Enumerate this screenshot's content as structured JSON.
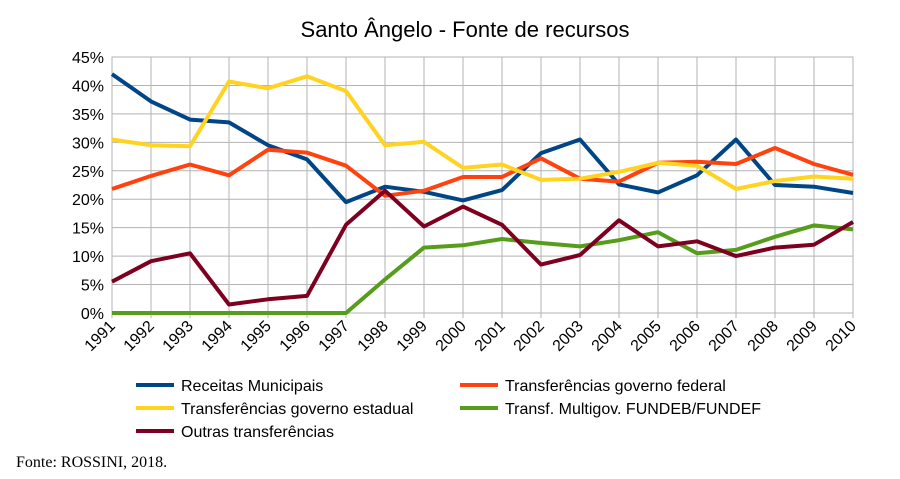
{
  "chart_data": {
    "type": "line",
    "title": "Santo Ângelo - Fonte de recursos",
    "xlabel": "",
    "ylabel": "",
    "ylim": [
      0,
      0.45
    ],
    "y_ticks": [
      "0%",
      "5%",
      "10%",
      "15%",
      "20%",
      "25%",
      "30%",
      "35%",
      "40%",
      "45%"
    ],
    "grid": true,
    "legend_position": "bottom",
    "categories": [
      "1991",
      "1992",
      "1993",
      "1994",
      "1995",
      "1996",
      "1997",
      "1998",
      "1999",
      "2000",
      "2001",
      "2002",
      "2003",
      "2004",
      "2005",
      "2006",
      "2007",
      "2008",
      "2009",
      "2010"
    ],
    "series": [
      {
        "name": "Receitas Municipais",
        "color": "#004586",
        "values": [
          0.42,
          0.372,
          0.34,
          0.335,
          0.295,
          0.27,
          0.195,
          0.222,
          0.213,
          0.198,
          0.216,
          0.281,
          0.305,
          0.226,
          0.212,
          0.242,
          0.305,
          0.225,
          0.222,
          0.211
        ]
      },
      {
        "name": "Transferências governo federal",
        "color": "#ff420e",
        "values": [
          0.218,
          0.241,
          0.261,
          0.242,
          0.287,
          0.282,
          0.259,
          0.206,
          0.215,
          0.239,
          0.239,
          0.272,
          0.236,
          0.231,
          0.264,
          0.266,
          0.262,
          0.29,
          0.262,
          0.243
        ]
      },
      {
        "name": "Transferências governo estadual",
        "color": "#ffd320",
        "values": [
          0.305,
          0.295,
          0.293,
          0.407,
          0.395,
          0.416,
          0.39,
          0.295,
          0.301,
          0.255,
          0.261,
          0.234,
          0.236,
          0.248,
          0.264,
          0.259,
          0.218,
          0.232,
          0.24,
          0.236
        ]
      },
      {
        "name": "Transf. Multigov. FUNDEB/FUNDEF",
        "color": "#579d1c",
        "values": [
          0.0,
          0.0,
          0.0,
          0.0,
          0.0,
          0.0,
          0.0,
          0.059,
          0.115,
          0.119,
          0.13,
          0.123,
          0.117,
          0.128,
          0.142,
          0.105,
          0.111,
          0.134,
          0.154,
          0.147
        ]
      },
      {
        "name": "Outras transferências",
        "color": "#7e0021",
        "values": [
          0.055,
          0.091,
          0.105,
          0.015,
          0.024,
          0.03,
          0.155,
          0.215,
          0.152,
          0.187,
          0.155,
          0.085,
          0.102,
          0.163,
          0.117,
          0.126,
          0.1,
          0.115,
          0.12,
          0.16
        ]
      }
    ]
  },
  "source": "Fonte: ROSSINI, 2018."
}
